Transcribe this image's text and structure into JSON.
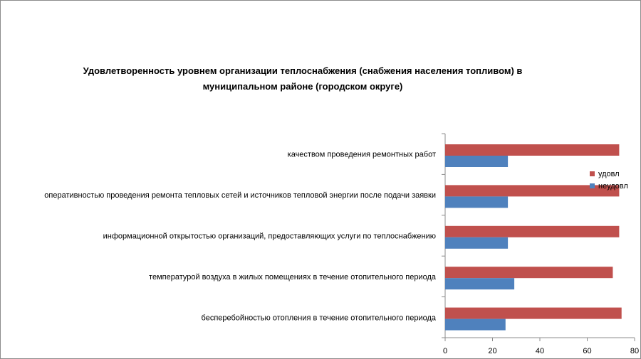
{
  "chart_data": {
    "type": "bar",
    "orientation": "horizontal",
    "title_lines": [
      "Удовлетворенность уровнем организации теплоснабжения (снабжения населения топливом) в",
      "муниципальном районе (городском округе)"
    ],
    "categories": [
      "качеством проведения ремонтных работ",
      "оперативностью проведения ремонта тепловых сетей и источников тепловой энергии после подачи заявки",
      "информационной открытостью организаций, предоставляющих услуги по теплоснабжению",
      "температурой воздуха в жилых помещениях в течение отопительного периода",
      "бесперебойностью отопления в течение отопительного периода"
    ],
    "series": [
      {
        "name": "удовл",
        "color": "#c0504d",
        "values": [
          73.5,
          73.5,
          73.5,
          70.8,
          74.5
        ]
      },
      {
        "name": "неудовл",
        "color": "#4f81bd",
        "values": [
          26.5,
          26.5,
          26.5,
          29.2,
          25.5
        ]
      }
    ],
    "xlim": [
      0,
      80
    ],
    "xticks": [
      0,
      20,
      40,
      60,
      80
    ],
    "legend_position": "right",
    "grid": false
  }
}
